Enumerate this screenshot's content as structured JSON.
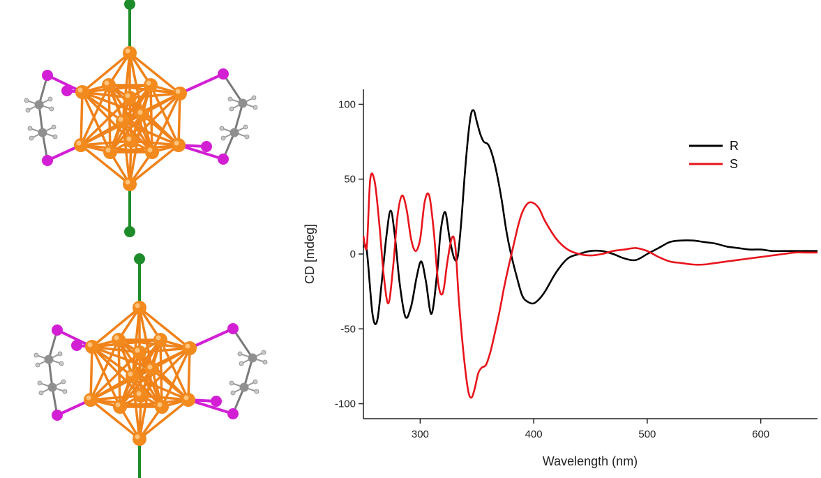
{
  "chart_data": {
    "type": "line",
    "xlabel": "Wavelength (nm)",
    "ylabel": "CD [mdeg]",
    "xlim": [
      250,
      650
    ],
    "ylim": [
      -110,
      110
    ],
    "x_ticks": [
      300,
      400,
      500,
      600
    ],
    "y_ticks": [
      100,
      50,
      0,
      -50,
      -100
    ],
    "grid": false,
    "legend_position": "top-right",
    "series": [
      {
        "name": "R",
        "color": "#000000",
        "x": [
          250,
          253,
          258,
          262,
          266,
          270,
          274,
          278,
          282,
          287,
          292,
          297,
          301,
          305,
          310,
          315,
          318,
          322,
          326,
          330,
          333,
          336,
          340,
          344,
          347,
          350,
          353,
          356,
          360,
          364,
          368,
          372,
          376,
          380,
          385,
          390,
          395,
          400,
          405,
          410,
          420,
          430,
          440,
          450,
          460,
          470,
          480,
          490,
          500,
          510,
          520,
          530,
          540,
          550,
          560,
          570,
          580,
          590,
          600,
          610,
          620,
          630,
          640,
          650
        ],
        "y": [
          5,
          2,
          -40,
          -45,
          -20,
          10,
          29,
          10,
          -20,
          -42,
          -35,
          -15,
          -5,
          -18,
          -40,
          -12,
          15,
          28,
          10,
          -3,
          -2,
          20,
          60,
          90,
          96,
          88,
          80,
          75,
          73,
          65,
          52,
          35,
          15,
          0,
          -15,
          -28,
          -32,
          -33,
          -30,
          -25,
          -12,
          -3,
          0,
          2,
          2,
          0,
          -3,
          -4,
          0,
          4,
          8,
          9,
          9,
          8,
          7,
          5,
          4,
          3,
          3,
          2,
          2,
          2,
          2,
          2
        ]
      },
      {
        "name": "S",
        "color": "#e8141c",
        "x": [
          250,
          253,
          256,
          260,
          264,
          268,
          272,
          276,
          280,
          284,
          288,
          292,
          296,
          300,
          304,
          308,
          312,
          316,
          320,
          324,
          328,
          331,
          334,
          338,
          342,
          345,
          348,
          351,
          354,
          358,
          362,
          366,
          370,
          374,
          378,
          382,
          386,
          390,
          395,
          400,
          405,
          410,
          420,
          430,
          440,
          450,
          460,
          470,
          480,
          490,
          500,
          510,
          520,
          530,
          540,
          550,
          560,
          570,
          580,
          590,
          600,
          610,
          620,
          630,
          640,
          650
        ],
        "y": [
          12,
          5,
          50,
          48,
          20,
          -15,
          -33,
          -10,
          25,
          39,
          30,
          10,
          2,
          10,
          35,
          39,
          15,
          -20,
          -26,
          -5,
          11,
          5,
          -30,
          -65,
          -90,
          -96,
          -90,
          -80,
          -76,
          -74,
          -65,
          -52,
          -38,
          -22,
          -8,
          5,
          18,
          28,
          34,
          34,
          30,
          22,
          10,
          3,
          0,
          -1,
          0,
          2,
          3,
          4,
          2,
          -2,
          -5,
          -6,
          -7,
          -7,
          -6,
          -5,
          -4,
          -3,
          -2,
          -1,
          0,
          1,
          1,
          1
        ]
      }
    ]
  },
  "figure": {
    "molecule_colors": {
      "boron": "#f28a1e",
      "bond": "#f0821a",
      "iodine": "#d21fd4",
      "chlorine": "#1e8c2a",
      "carbon": "#8f8f8f",
      "hydrogen": "#c8c8c8"
    }
  }
}
